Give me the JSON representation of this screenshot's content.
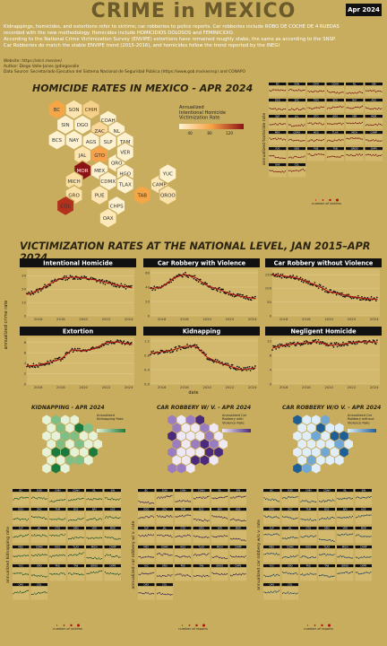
{
  "header": {
    "title": "CRIME in MEXICO",
    "badge": "Apr 2024"
  },
  "description": [
    "Kidnappings, homicides, and extortions refer to victims; car robberies to police reports. Car robberies include ROBO DE COCHE DE 4 RUEDAS",
    "recorded with the new methodology. Homicides include HOMICIDIOS DOLOSOS and FEMINICIDIO.",
    "According to the National Crime Victimization Survey (ENVIPE) extortions have remained roughly stabe, the same as according to the SNSP.",
    "Car Robberies do match the stable ENVIPE trend (2015-2016), and homicides follow the trend reported by the INEGI"
  ],
  "meta": [
    "Website: https://elcri.men/en/",
    "Author: Diego Valle-Jones @diegovalle",
    "Data Source: Secretariado Ejecutivo del Sistema Nacional de Seguridad Pública (https://www.gob.mx/sesnsp) and CONAPO"
  ],
  "homicide_map": {
    "title": "HOMICIDE RATES IN MEXICO - APR 2024",
    "legend_title": "Annualized\nIntentional Homicide\nVictimization Rate",
    "legend_ticks": [
      "40",
      "80",
      "120"
    ],
    "states": [
      "BC",
      "SON",
      "CHIH",
      "COAH",
      "NL",
      "SIN",
      "DGO",
      "ZAC",
      "TAM",
      "BCS",
      "NAY",
      "AGS",
      "SLP",
      "JAL",
      "GTO",
      "QRO",
      "VER",
      "MOR",
      "MEX",
      "CDMX",
      "HGO",
      "TLAX",
      "MICH",
      "CAMP",
      "YUC",
      "GRO",
      "PUE",
      "TAB",
      "QROO",
      "CHPS",
      "OAX",
      "COL"
    ]
  },
  "homicide_facets": {
    "ylabel": "annualized homicide rate",
    "size_legend_title": "number of victims"
  },
  "national": {
    "title": "VICTIMIZATION RATES AT THE NATIONAL LEVEL, JAN 2015–APR 2024",
    "ylabel": "annualized crime rate",
    "xlabel": "date"
  },
  "kidnap_map": {
    "title": "KIDNAPPING - APR 2024",
    "legend_title": "Annualized\nKidnapping Rate"
  },
  "carviol_map": {
    "title": "CAR ROBBERY W/ V. - APR 2024",
    "legend_title": "Annualized Car\nRobbery with\nViolence Rate"
  },
  "carnoviol_map": {
    "title": "CAR ROBBERY W/O V. - APR 2024",
    "legend_title": "Annualized Car\nRobbery without\nViolence Rate"
  },
  "bottom_facets": [
    {
      "ylabel": "annualized kidnapping rate",
      "size_legend_title": "number of victims"
    },
    {
      "ylabel": "annualized car robbery w/ v. rate",
      "size_legend_title": "number of reports"
    },
    {
      "ylabel": "annualized car robbery w/o v. rate",
      "size_legend_title": "number of reports"
    }
  ],
  "chart_data": [
    {
      "type": "line",
      "title": "Intentional Homicide",
      "x_ticks": [
        "2016",
        "2018",
        "2020",
        "2022",
        "2024"
      ],
      "y_ticks": [
        "0",
        "10",
        "20",
        "30"
      ],
      "ylim": [
        0,
        35
      ],
      "x": [
        2015,
        2016,
        2017,
        2018,
        2019,
        2020,
        2021,
        2022,
        2023,
        2024.3
      ],
      "values": [
        16,
        19,
        24,
        28,
        29,
        28.5,
        27,
        25,
        23,
        21
      ]
    },
    {
      "type": "line",
      "title": "Car Robbery with Violence",
      "x_ticks": [
        "2016",
        "2018",
        "2020",
        "2022",
        "2024"
      ],
      "y_ticks": [
        "0",
        "20",
        "40",
        "60"
      ],
      "ylim": [
        0,
        65
      ],
      "x": [
        2015,
        2016,
        2017,
        2018,
        2019,
        2020,
        2021,
        2022,
        2023,
        2024.3
      ],
      "values": [
        38,
        40,
        52,
        58,
        53,
        42,
        37,
        31,
        27,
        24
      ]
    },
    {
      "type": "line",
      "title": "Car Robbery without Violence",
      "x_ticks": [
        "2016",
        "2018",
        "2020",
        "2022",
        "2024"
      ],
      "y_ticks": [
        "0",
        "50",
        "100",
        "150"
      ],
      "ylim": [
        0,
        170
      ],
      "x": [
        2015,
        2016,
        2017,
        2018,
        2019,
        2020,
        2021,
        2022,
        2023,
        2024.3
      ],
      "values": [
        150,
        145,
        140,
        125,
        110,
        88,
        80,
        70,
        64,
        60
      ]
    },
    {
      "type": "line",
      "title": "Extortion",
      "x_ticks": [
        "2016",
        "2018",
        "2020",
        "2022",
        "2024"
      ],
      "y_ticks": [
        "0",
        "2",
        "4",
        "6",
        "8"
      ],
      "ylim": [
        0,
        9
      ],
      "x": [
        2015,
        2016,
        2017,
        2018,
        2019,
        2020,
        2021,
        2022,
        2023,
        2024.3
      ],
      "values": [
        3.5,
        3.6,
        4.2,
        4.8,
        6.6,
        6.4,
        6.8,
        8.0,
        8.1,
        7.6
      ]
    },
    {
      "type": "line",
      "title": "Kidnapping",
      "x_ticks": [
        "2016",
        "2018",
        "2020",
        "2022",
        "2024"
      ],
      "y_ticks": [
        "0.0",
        "0.4",
        "0.8",
        "1.2"
      ],
      "ylim": [
        0,
        1.3
      ],
      "x": [
        2015,
        2016,
        2017,
        2018,
        2019,
        2020,
        2021,
        2022,
        2023,
        2024.3
      ],
      "values": [
        0.85,
        0.9,
        0.95,
        1.05,
        1.05,
        0.75,
        0.6,
        0.5,
        0.4,
        0.45
      ]
    },
    {
      "type": "line",
      "title": "Negligent Homicide",
      "x_ticks": [
        "2016",
        "2018",
        "2020",
        "2022",
        "2024"
      ],
      "y_ticks": [
        "0",
        "4",
        "8",
        "12"
      ],
      "ylim": [
        0,
        13
      ],
      "x": [
        2015,
        2016,
        2017,
        2018,
        2019,
        2020,
        2021,
        2022,
        2023,
        2024.3
      ],
      "values": [
        10,
        10.8,
        11.2,
        11.5,
        11.8,
        10.8,
        11.0,
        11.5,
        11.8,
        11.7
      ]
    }
  ],
  "colors": {
    "background": "#c9ad5e",
    "accent": "#9a1a0f",
    "panel_header": "#111111"
  }
}
